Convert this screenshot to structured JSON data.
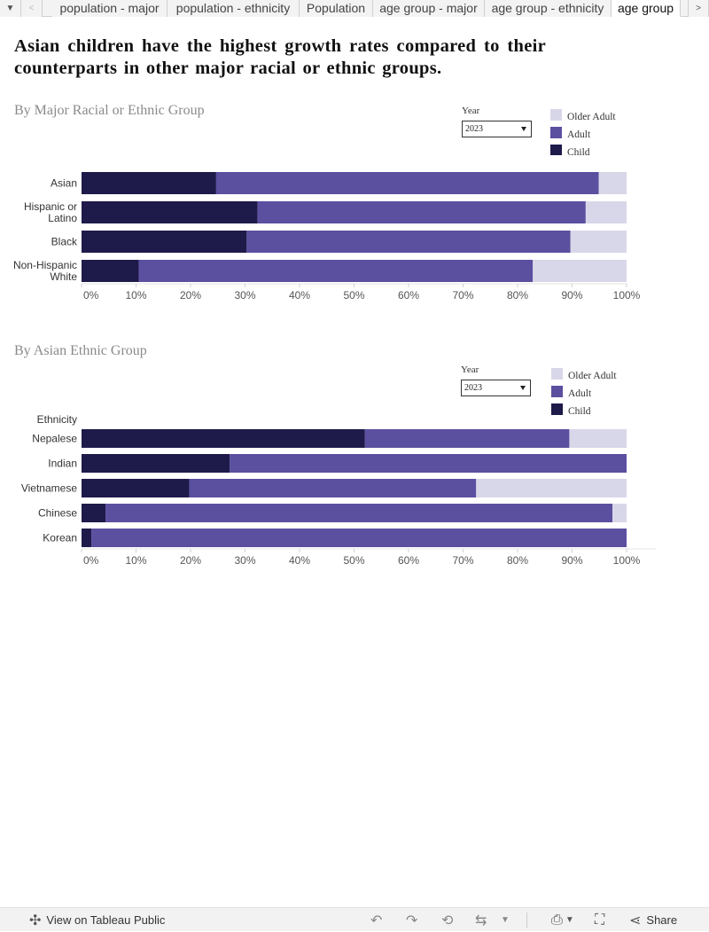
{
  "tabs": [
    {
      "label": "population - major",
      "active": false
    },
    {
      "label": "population - ethnicity",
      "active": false
    },
    {
      "label": "Population",
      "active": false
    },
    {
      "label": "age group - major",
      "active": false
    },
    {
      "label": "age group - ethnicity",
      "active": false
    },
    {
      "label": "age group",
      "active": true
    }
  ],
  "title": "Asian children have the highest growth rates compared to their counterparts in other major racial or ethnic groups.",
  "colors": {
    "older_adult": "#d8d7e9",
    "adult": "#5b4fa0",
    "child": "#1e1a4a"
  },
  "legend": {
    "older_adult": "Older Adult",
    "adult": "Adult",
    "child": "Child"
  },
  "section1": {
    "title": "By Major Racial or Ethnic Group",
    "year_label": "Year",
    "year_value": "2023"
  },
  "section2": {
    "title": "By Asian Ethnic Group",
    "year_label": "Year",
    "year_value": "2023"
  },
  "chart_data": [
    {
      "type": "bar",
      "orientation": "horizontal-stacked-100",
      "categories": [
        "Asian",
        "Hispanic or Latino",
        "Black",
        "Non-Hispanic White"
      ],
      "series": [
        {
          "name": "Child",
          "values": [
            24.7,
            32.3,
            30.3,
            10.5
          ]
        },
        {
          "name": "Adult",
          "values": [
            70.2,
            60.2,
            59.4,
            72.3
          ]
        },
        {
          "name": "Older Adult",
          "values": [
            5.1,
            7.5,
            10.3,
            17.2
          ]
        }
      ],
      "xlim": [
        0,
        100
      ],
      "xticks": [
        "0%",
        "10%",
        "20%",
        "30%",
        "40%",
        "50%",
        "60%",
        "70%",
        "80%",
        "90%",
        "100%"
      ],
      "ylabel": "",
      "legend_placement": "top-right"
    },
    {
      "type": "bar",
      "orientation": "horizontal-stacked-100",
      "categories": [
        "Nepalese",
        "Indian",
        "Vietnamese",
        "Chinese",
        "Korean"
      ],
      "series": [
        {
          "name": "Child",
          "values": [
            52.0,
            27.2,
            19.8,
            4.4,
            1.8
          ]
        },
        {
          "name": "Adult",
          "values": [
            37.5,
            72.8,
            52.6,
            93.0,
            98.2
          ]
        },
        {
          "name": "Older Adult",
          "values": [
            10.5,
            0.0,
            27.6,
            2.6,
            0.0
          ]
        }
      ],
      "xlim": [
        0,
        100
      ],
      "xticks": [
        "0%",
        "10%",
        "20%",
        "30%",
        "40%",
        "50%",
        "60%",
        "70%",
        "80%",
        "90%",
        "100%"
      ],
      "ylabel": "Ethnicity",
      "legend_placement": "top-right"
    }
  ],
  "toolbar": {
    "view_label": "View on Tableau Public",
    "share_label": "Share"
  }
}
